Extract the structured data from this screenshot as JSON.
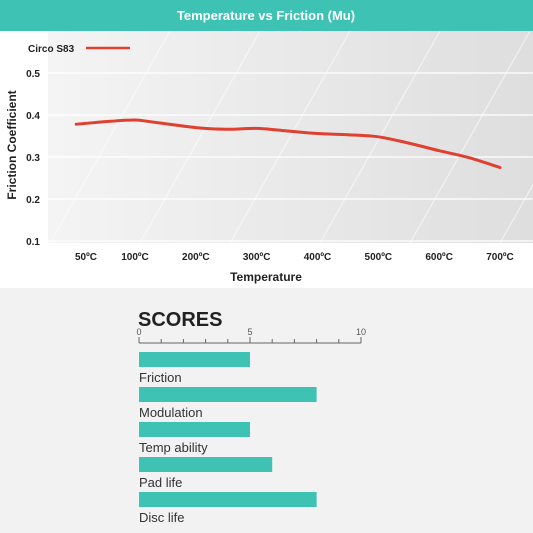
{
  "colors": {
    "teal": "#3dc2b3",
    "line": "#e0402f",
    "grid": "#ffffff"
  },
  "chart_data": [
    {
      "type": "line",
      "title": "Temperature vs Friction (Mu)",
      "xlabel": "Temperature",
      "ylabel": "Friction Coefficient",
      "x_tick_labels": [
        "50ºC",
        "100ºC",
        "200ºC",
        "300ºC",
        "400ºC",
        "500ºC",
        "600ºC",
        "700ºC"
      ],
      "y_tick_labels": [
        "0.1",
        "0.2",
        "0.3",
        "0.4",
        "0.5"
      ],
      "ylim": [
        0.08,
        0.52
      ],
      "grid": true,
      "legend": "top-left",
      "series": [
        {
          "name": "Circo S83",
          "color": "#e0402f",
          "points": [
            {
              "x": "40ºC",
              "y": 0.378
            },
            {
              "x": "75ºC",
              "y": 0.385
            },
            {
              "x": "100ºC",
              "y": 0.388
            },
            {
              "x": "130ºC",
              "y": 0.383
            },
            {
              "x": "200ºC",
              "y": 0.37
            },
            {
              "x": "250ºC",
              "y": 0.366
            },
            {
              "x": "300ºC",
              "y": 0.368
            },
            {
              "x": "350ºC",
              "y": 0.362
            },
            {
              "x": "400ºC",
              "y": 0.356
            },
            {
              "x": "450ºC",
              "y": 0.353
            },
            {
              "x": "500ºC",
              "y": 0.348
            },
            {
              "x": "550ºC",
              "y": 0.333
            },
            {
              "x": "600ºC",
              "y": 0.315
            },
            {
              "x": "650ºC",
              "y": 0.298
            },
            {
              "x": "700ºC",
              "y": 0.275
            }
          ]
        }
      ]
    },
    {
      "type": "bar",
      "title": "SCORES",
      "orientation": "horizontal",
      "xlim": [
        0,
        10
      ],
      "x_tick_labels": [
        "0",
        "5",
        "10"
      ],
      "categories": [
        "Friction",
        "Modulation",
        "Temp ability",
        "Pad life",
        "Disc life"
      ],
      "values": [
        5,
        8,
        5,
        6,
        8
      ],
      "color": "#3dc2b3"
    }
  ]
}
